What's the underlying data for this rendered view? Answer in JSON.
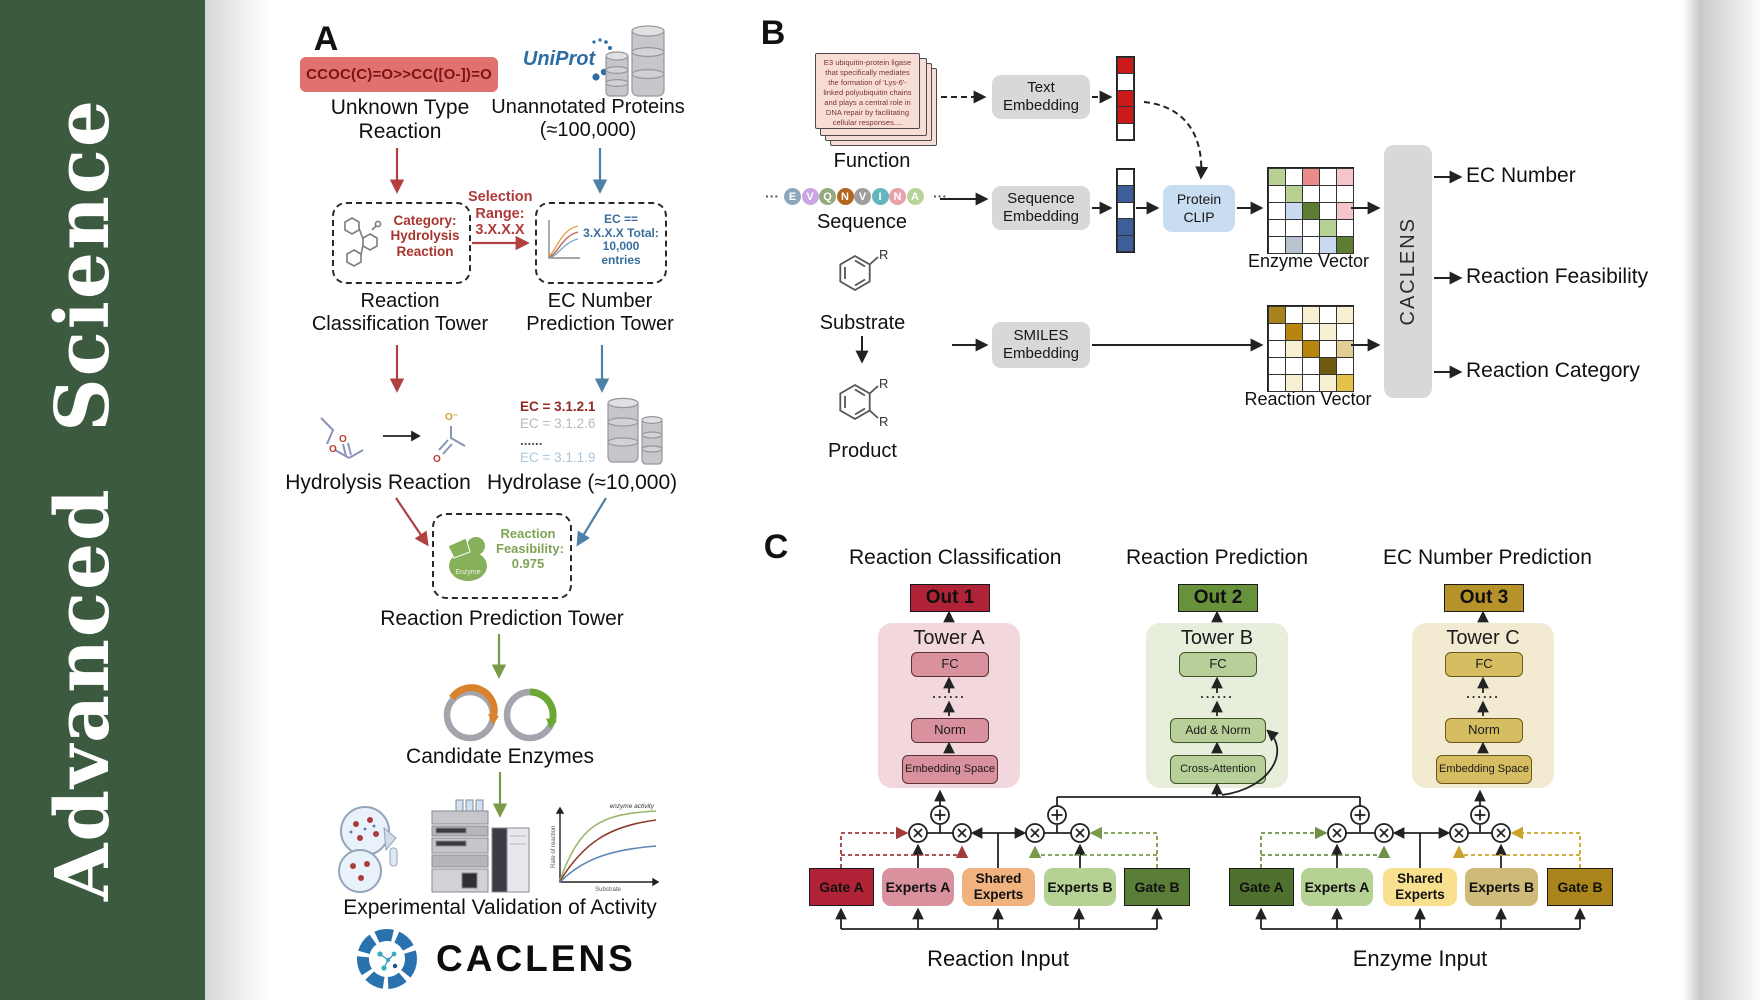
{
  "journal": {
    "name": "Advanced  Science"
  },
  "colors": {
    "sidebar_green": "#3c5a40",
    "accent_red": "#b24040",
    "accent_blue": "#4f81a6",
    "accent_olive": "#7a9a4a",
    "smiles_bg": "#e0716e",
    "gray_box": "#d8d8d8",
    "clip_blue": "#c9ddf2",
    "out1_red": "#b02336",
    "out2_green": "#68913c",
    "out3_gold": "#b6922b"
  },
  "panel_a": {
    "label": "A",
    "smiles_box": "CCOC(C)=O>>CC([O-])=O",
    "unknown_reaction": "Unknown Type Reaction",
    "uniprot_logo": "UniProt",
    "unannotated_proteins": "Unannotated Proteins (≈100,000)",
    "selection_range": "Selection Range: 3.X.X.X",
    "category_box": "Category: Hydrolysis Reaction",
    "ec_selection_box": "EC == 3.X.X.X Total: 10,000 entries",
    "reaction_classification_tower": "Reaction Classification Tower",
    "ec_number_prediction_tower": "EC Number Prediction Tower",
    "hydrolysis_reaction": "Hydrolysis Reaction",
    "ec_list": [
      {
        "text": "EC = 3.1.2.1",
        "color": "#8e2a23",
        "bold": true
      },
      {
        "text": "EC = 3.1.2.6",
        "color": "#b9b9b9",
        "bold": false
      },
      {
        "text": "......",
        "color": "#555555",
        "bold": true
      },
      {
        "text": "EC = 3.1.1.9",
        "color": "#aac7de",
        "bold": false
      }
    ],
    "hydrolase": "Hydrolase (≈10,000)",
    "enzyme_icon_label": "Enzyme",
    "feasibility_box": "Reaction Feasibility: 0.975",
    "reaction_prediction_tower": "Reaction Prediction Tower",
    "candidate_enzymes": "Candidate Enzymes",
    "activity_plot": {
      "ylabel": "Rate of reaction",
      "xlabel": "Substrate",
      "annotation": "enzyme activity"
    },
    "experimental_validation": "Experimental Validation of Activity",
    "brand": "CACLENS"
  },
  "panel_b": {
    "label": "B",
    "function_card_text": "E3 ubiquitin-protein ligase that specifically mediates the formation of 'Lys-6'-linked polyubiquitin chains and plays a central role in DNA repair by facilitating cellular responses....",
    "function_label": "Function",
    "ellipsis": "···",
    "sequence_residues": [
      {
        "letter": "E",
        "color": "#8ba6bd"
      },
      {
        "letter": "V",
        "color": "#c9a6e3"
      },
      {
        "letter": "Q",
        "color": "#95a97e"
      },
      {
        "letter": "N",
        "color": "#b5651d"
      },
      {
        "letter": "V",
        "color": "#9e9e9e"
      },
      {
        "letter": "I",
        "color": "#62b6bd"
      },
      {
        "letter": "N",
        "color": "#e9a2ac"
      },
      {
        "letter": "A",
        "color": "#b9d49a"
      }
    ],
    "sequence_label": "Sequence",
    "substrate_label": "Substrate",
    "product_label": "Product",
    "substituent": "R",
    "text_embedding": "Text Embedding",
    "sequence_embedding": "Sequence Embedding",
    "smiles_embedding": "SMILES Embedding",
    "protein_clip": "Protein CLIP",
    "enzyme_vector_label": "Enzyme Vector",
    "reaction_vector_label": "Reaction Vector",
    "caclens_label": "CACLENS",
    "outputs": [
      "EC Number",
      "Reaction Feasibility",
      "Reaction Category"
    ],
    "text_vector": [
      "R",
      "W",
      "R",
      "R",
      "W"
    ],
    "seq_vector": [
      "W",
      "B",
      "W",
      "B",
      "B"
    ],
    "vector_palette": {
      "R": "#cc1a1a",
      "W": "#ffffff",
      "B": "#3d5e99"
    },
    "enzyme_grid": [
      [
        "g",
        "w",
        "r",
        "w",
        "p"
      ],
      [
        "w",
        "g",
        "w",
        "w",
        "w"
      ],
      [
        "w",
        "lb",
        "dg",
        "w",
        "p"
      ],
      [
        "w",
        "w",
        "w",
        "g",
        "w"
      ],
      [
        "w",
        "gb",
        "w",
        "lb",
        "dg"
      ]
    ],
    "enzyme_palette": {
      "g": "#b7d193",
      "r": "#e98b8b",
      "p": "#f4c6cc",
      "lb": "#c9daf0",
      "dg": "#5e7d33",
      "gb": "#b7c3ce",
      "w": "#ffffff"
    },
    "reaction_grid": [
      [
        "DG",
        "w",
        "c",
        "w",
        "c"
      ],
      [
        "w",
        "G",
        "w",
        "c",
        "w"
      ],
      [
        "w",
        "c",
        "G",
        "w",
        "t"
      ],
      [
        "w",
        "w",
        "w",
        "DB",
        "w"
      ],
      [
        "w",
        "c",
        "w",
        "c",
        "Y"
      ]
    ],
    "reaction_palette": {
      "DG": "#a8821c",
      "G": "#b8860f",
      "c": "#f6efd2",
      "t": "#e0ce96",
      "DB": "#6e5a10",
      "Y": "#e3c24a",
      "w": "#ffffff"
    }
  },
  "panel_c": {
    "label": "C",
    "headings": [
      "Reaction Classification",
      "Reaction Prediction",
      "EC Number Prediction"
    ],
    "outs": [
      "Out 1",
      "Out 2",
      "Out 3"
    ],
    "towers": [
      {
        "name": "Tower A",
        "top": "FC",
        "dots": "......",
        "mid": "Norm",
        "bottom": "Embedding Space"
      },
      {
        "name": "Tower B",
        "top": "FC",
        "dots": "......",
        "mid": "Add & Norm",
        "bottom": "Cross-Attention"
      },
      {
        "name": "Tower C",
        "top": "FC",
        "dots": "......",
        "mid": "Norm",
        "bottom": "Embedding Space"
      }
    ],
    "groups": [
      {
        "gate_a": "Gate A",
        "experts_a": "Experts A",
        "shared": "Shared Experts",
        "experts_b": "Experts B",
        "gate_b": "Gate B",
        "input": "Reaction Input"
      },
      {
        "gate_a": "Gate A",
        "experts_a": "Experts A",
        "shared": "Shared Experts",
        "experts_b": "Experts B",
        "gate_b": "Gate B",
        "input": "Enzyme Input"
      }
    ]
  }
}
